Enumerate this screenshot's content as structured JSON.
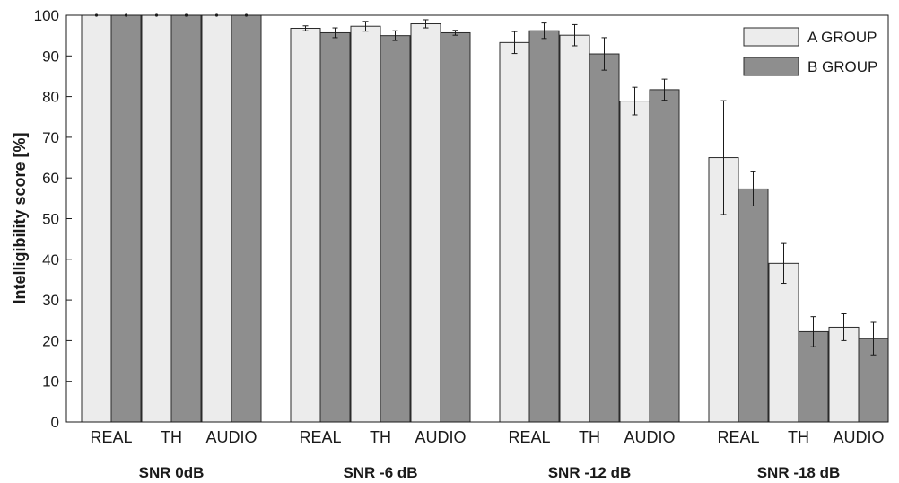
{
  "chart_data": {
    "type": "bar",
    "title": "",
    "xlabel": "",
    "ylabel": "Intelligibility score [%]",
    "ylim": [
      0,
      100
    ],
    "yticks": [
      0,
      10,
      20,
      30,
      40,
      50,
      60,
      70,
      80,
      90,
      100
    ],
    "grid": false,
    "legend_position": "top-right",
    "groups": [
      {
        "label": "SNR 0dB",
        "categories": [
          "REAL",
          "TH",
          "AUDIO"
        ]
      },
      {
        "label": "SNR -6 dB",
        "categories": [
          "REAL",
          "TH",
          "AUDIO"
        ]
      },
      {
        "label": "SNR -12 dB",
        "categories": [
          "REAL",
          "TH",
          "AUDIO"
        ]
      },
      {
        "label": "SNR -18 dB",
        "categories": [
          "REAL",
          "TH",
          "AUDIO"
        ]
      }
    ],
    "series": [
      {
        "name": "A GROUP",
        "color": "#ececec",
        "values": [
          100,
          100,
          100,
          96.8,
          97.3,
          97.9,
          93.3,
          95.1,
          78.9,
          65,
          39,
          23.3
        ],
        "errors": [
          0,
          0,
          0,
          0.6,
          1.2,
          1.0,
          2.7,
          2.6,
          3.4,
          14,
          4.9,
          3.3
        ]
      },
      {
        "name": "B GROUP",
        "color": "#8e8e8e",
        "values": [
          100,
          100,
          100,
          95.7,
          95.0,
          95.7,
          96.2,
          90.5,
          81.7,
          57.3,
          22.2,
          20.5
        ],
        "errors": [
          0,
          0,
          0,
          1.2,
          1.2,
          0.6,
          1.9,
          4.0,
          2.6,
          4.2,
          3.7,
          4.0
        ]
      }
    ]
  }
}
